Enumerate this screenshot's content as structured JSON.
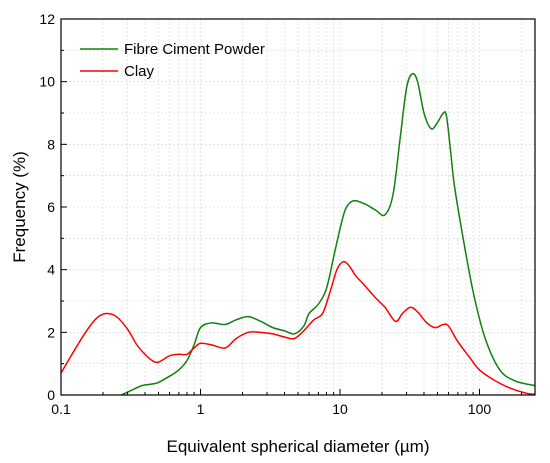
{
  "chart_data": {
    "type": "line",
    "xlabel": "Equivalent spherical diameter (µm)",
    "ylabel": "Frequency (%)",
    "xscale": "log",
    "xlim": [
      0.1,
      250
    ],
    "ylim": [
      0,
      12
    ],
    "xticks": [
      0.1,
      1,
      10,
      100
    ],
    "xtick_labels": [
      "0.1",
      "1",
      "10",
      "100"
    ],
    "yticks": [
      0,
      2,
      4,
      6,
      8,
      10,
      12
    ],
    "ytick_labels": [
      "0",
      "2",
      "4",
      "6",
      "8",
      "10",
      "12"
    ],
    "grid": true,
    "legend_position": "top-left",
    "series": [
      {
        "name": "Fibre Ciment Powder",
        "color": "#118011",
        "x": [
          0.27,
          0.32,
          0.38,
          0.45,
          0.5,
          0.6,
          0.7,
          0.8,
          0.9,
          1.0,
          1.2,
          1.5,
          1.8,
          2.2,
          2.7,
          3.3,
          4.0,
          4.7,
          5.5,
          6.0,
          7.0,
          8.0,
          9.0,
          10.0,
          11.0,
          12.5,
          15.0,
          18.0,
          21.0,
          24.0,
          27.0,
          30.0,
          33.0,
          36.0,
          40.0,
          45.0,
          50.0,
          55.0,
          58.0,
          62.0,
          66.0,
          75.0,
          90.0,
          110.0,
          140.0,
          180.0,
          250.0
        ],
        "y": [
          0.0,
          0.15,
          0.3,
          0.35,
          0.4,
          0.6,
          0.8,
          1.1,
          1.6,
          2.15,
          2.3,
          2.25,
          2.4,
          2.5,
          2.35,
          2.15,
          2.05,
          1.95,
          2.2,
          2.6,
          2.9,
          3.4,
          4.4,
          5.3,
          5.95,
          6.2,
          6.1,
          5.9,
          5.75,
          6.4,
          8.2,
          9.8,
          10.25,
          10.0,
          9.0,
          8.5,
          8.7,
          9.0,
          8.9,
          7.8,
          6.7,
          5.2,
          3.3,
          1.8,
          0.8,
          0.45,
          0.3
        ]
      },
      {
        "name": "Clay",
        "color": "#ff0000",
        "x": [
          0.1,
          0.12,
          0.15,
          0.18,
          0.21,
          0.25,
          0.3,
          0.35,
          0.4,
          0.45,
          0.5,
          0.6,
          0.7,
          0.8,
          0.9,
          1.0,
          1.2,
          1.5,
          1.8,
          2.2,
          2.7,
          3.3,
          4.0,
          4.7,
          5.5,
          6.5,
          7.5,
          8.5,
          9.5,
          10.5,
          11.5,
          13.0,
          15.0,
          18.0,
          21.0,
          25.0,
          28.0,
          32.0,
          36.0,
          42.0,
          48.0,
          55.0,
          60.0,
          70.0,
          85.0,
          100.0,
          130.0,
          170.0,
          220.0,
          250.0
        ],
        "y": [
          0.7,
          1.3,
          2.0,
          2.45,
          2.6,
          2.5,
          2.1,
          1.6,
          1.3,
          1.1,
          1.05,
          1.25,
          1.3,
          1.3,
          1.5,
          1.65,
          1.6,
          1.5,
          1.8,
          2.0,
          2.0,
          1.95,
          1.85,
          1.8,
          2.05,
          2.4,
          2.6,
          3.3,
          4.0,
          4.25,
          4.15,
          3.8,
          3.5,
          3.1,
          2.8,
          2.35,
          2.6,
          2.8,
          2.65,
          2.3,
          2.15,
          2.25,
          2.2,
          1.7,
          1.2,
          0.8,
          0.45,
          0.2,
          0.05,
          0.02
        ]
      }
    ]
  }
}
